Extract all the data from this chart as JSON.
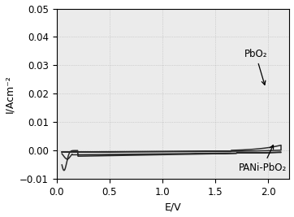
{
  "title": "",
  "xlabel": "E/V",
  "ylabel": "I/Acm⁻²",
  "xlim": [
    0.0,
    2.2
  ],
  "ylim": [
    -0.01,
    0.05
  ],
  "xticks": [
    0.0,
    0.5,
    1.0,
    1.5,
    2.0
  ],
  "yticks": [
    -0.01,
    0.0,
    0.01,
    0.02,
    0.03,
    0.04,
    0.05
  ],
  "line_color": "#2a2a2a",
  "background_color": "#ebebeb",
  "label_pbo2": "PbO₂",
  "label_pani": "PANi-PbO₂"
}
